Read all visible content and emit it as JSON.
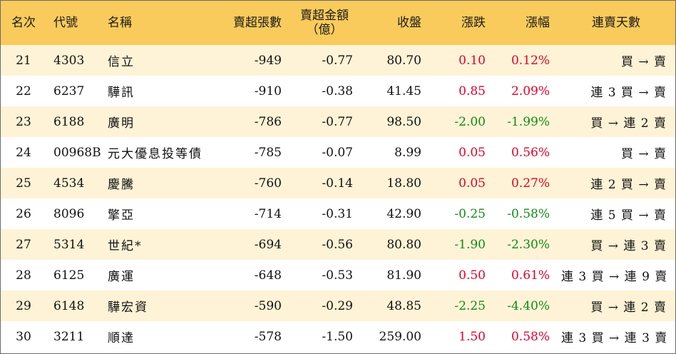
{
  "header": {
    "rank": "名次",
    "code": "代號",
    "name": "名稱",
    "net_sell_lots": "賣超張數",
    "net_sell_amount_line1": "賣超金額",
    "net_sell_amount_line2": "（億）",
    "close": "收盤",
    "change": "漲跌",
    "change_pct": "漲幅",
    "streak": "連賣天數"
  },
  "colors": {
    "header_bg": "#f9cb5c",
    "stripe_bg": "#fef3d6",
    "up": "#e0002a",
    "down": "#138a16"
  },
  "rows": [
    {
      "rank": "21",
      "code": "4303",
      "name": "信立",
      "lots": "-949",
      "amount": "-0.77",
      "close": "80.70",
      "change": "0.10",
      "pct": "0.12%",
      "dir": "up",
      "streak": "買 → 賣"
    },
    {
      "rank": "22",
      "code": "6237",
      "name": "驊訊",
      "lots": "-910",
      "amount": "-0.38",
      "close": "41.45",
      "change": "0.85",
      "pct": "2.09%",
      "dir": "up",
      "streak": "連 3 買 → 賣"
    },
    {
      "rank": "23",
      "code": "6188",
      "name": "廣明",
      "lots": "-786",
      "amount": "-0.77",
      "close": "98.50",
      "change": "-2.00",
      "pct": "-1.99%",
      "dir": "down",
      "streak": "買 → 連 2 賣"
    },
    {
      "rank": "24",
      "code": "00968B",
      "name": "元大優息投等債",
      "lots": "-785",
      "amount": "-0.07",
      "close": "8.99",
      "change": "0.05",
      "pct": "0.56%",
      "dir": "up",
      "streak": "買 → 賣"
    },
    {
      "rank": "25",
      "code": "4534",
      "name": "慶騰",
      "lots": "-760",
      "amount": "-0.14",
      "close": "18.80",
      "change": "0.05",
      "pct": "0.27%",
      "dir": "up",
      "streak": "連 2 買 → 賣"
    },
    {
      "rank": "26",
      "code": "8096",
      "name": "擎亞",
      "lots": "-714",
      "amount": "-0.31",
      "close": "42.90",
      "change": "-0.25",
      "pct": "-0.58%",
      "dir": "down",
      "streak": "連 5 買 → 賣"
    },
    {
      "rank": "27",
      "code": "5314",
      "name": "世紀*",
      "lots": "-694",
      "amount": "-0.56",
      "close": "80.80",
      "change": "-1.90",
      "pct": "-2.30%",
      "dir": "down",
      "streak": "買 → 連 3 賣"
    },
    {
      "rank": "28",
      "code": "6125",
      "name": "廣運",
      "lots": "-648",
      "amount": "-0.53",
      "close": "81.90",
      "change": "0.50",
      "pct": "0.61%",
      "dir": "up",
      "streak": "連 3 買 → 連 9 賣"
    },
    {
      "rank": "29",
      "code": "6148",
      "name": "驊宏資",
      "lots": "-590",
      "amount": "-0.29",
      "close": "48.85",
      "change": "-2.25",
      "pct": "-4.40%",
      "dir": "down",
      "streak": "買 → 連 2 賣"
    },
    {
      "rank": "30",
      "code": "3211",
      "name": "順達",
      "lots": "-578",
      "amount": "-1.50",
      "close": "259.00",
      "change": "1.50",
      "pct": "0.58%",
      "dir": "up",
      "streak": "連 3 買 → 連 3 賣"
    }
  ]
}
